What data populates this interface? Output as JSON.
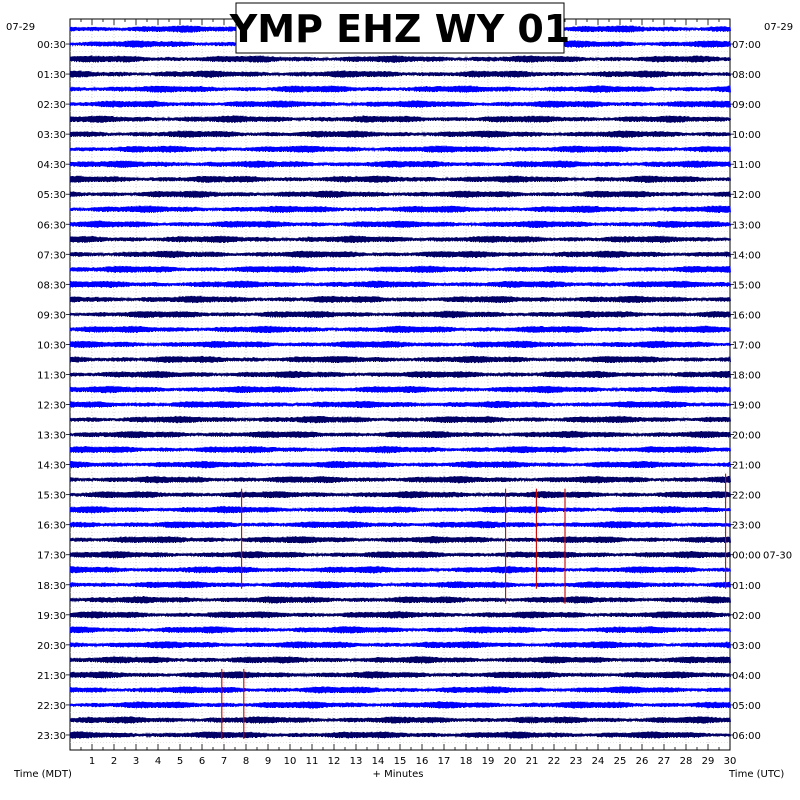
{
  "chart_data": {
    "type": "line",
    "title": "YMP EHZ WY 01",
    "xlabel": "+ Minutes",
    "left_axis_title": "Time (MDT)",
    "right_axis_title": "Time (UTC)",
    "left_date": "07-29",
    "right_date_top": "07-29",
    "right_date_change": "07-30",
    "xlim": [
      0,
      30
    ],
    "x_ticks": [
      "1",
      "2",
      "3",
      "4",
      "5",
      "6",
      "7",
      "8",
      "9",
      "10",
      "11",
      "12",
      "13",
      "14",
      "15",
      "16",
      "17",
      "18",
      "19",
      "20",
      "21",
      "22",
      "23",
      "24",
      "25",
      "26",
      "27",
      "28",
      "29",
      "30"
    ],
    "num_traces": 48,
    "trace_interval_minutes": 30,
    "trace_colors": [
      "#0000ff",
      "#000066"
    ],
    "grid": true,
    "left_ticks": [
      "00:30",
      "01:30",
      "02:30",
      "03:30",
      "04:30",
      "05:30",
      "06:30",
      "07:30",
      "08:30",
      "09:30",
      "10:30",
      "11:30",
      "12:30",
      "13:30",
      "14:30",
      "15:30",
      "16:30",
      "17:30",
      "18:30",
      "19:30",
      "20:30",
      "21:30",
      "22:30",
      "23:30"
    ],
    "right_ticks": [
      "07:00",
      "08:00",
      "09:00",
      "10:00",
      "11:00",
      "12:00",
      "13:00",
      "14:00",
      "15:00",
      "16:00",
      "17:00",
      "18:00",
      "19:00",
      "20:00",
      "21:00",
      "22:00",
      "23:00",
      "00:00",
      "01:00",
      "02:00",
      "03:00",
      "04:00",
      "05:00",
      "06:00"
    ],
    "events": [
      {
        "minute": 7.8,
        "first_trace": 31,
        "last_trace": 37
      },
      {
        "minute": 19.8,
        "first_trace": 31,
        "last_trace": 38
      },
      {
        "minute": 21.2,
        "first_trace": 31,
        "last_trace": 37
      },
      {
        "minute": 22.5,
        "first_trace": 31,
        "last_trace": 38
      },
      {
        "minute": 29.8,
        "first_trace": 30,
        "last_trace": 37
      },
      {
        "minute": 6.9,
        "first_trace": 43,
        "last_trace": 47
      },
      {
        "minute": 7.9,
        "first_trace": 43,
        "last_trace": 47
      }
    ],
    "event_color": "#cc0000"
  }
}
